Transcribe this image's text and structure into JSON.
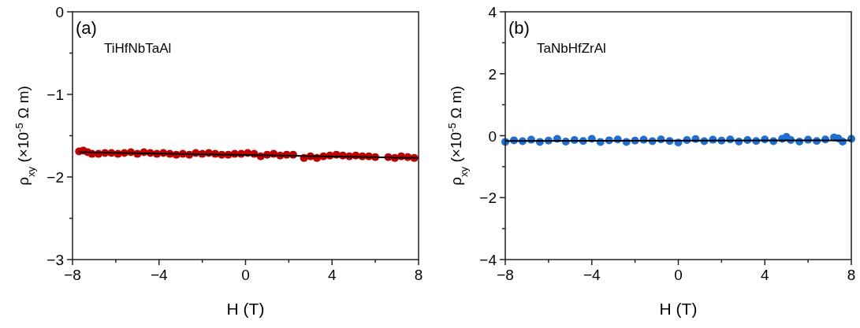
{
  "chart_data": [
    {
      "type": "scatter",
      "title": "(a)",
      "annotations": [
        "TiHfNbTaAl"
      ],
      "xlabel": "H (T)",
      "ylabel": "ρ$_{xy}$ (×10$^{-5}$ Ω m)",
      "xlim": [
        -8,
        8
      ],
      "xticks": [
        -8,
        {
          "value": -6,
          "label": null
        },
        -4,
        {
          "value": -2,
          "label": null
        },
        0,
        {
          "value": 2,
          "label": null
        },
        4,
        {
          "value": 6,
          "label": null
        },
        8
      ],
      "ylim": [
        -3,
        0
      ],
      "yticks": [
        -3,
        {
          "value": -2.5,
          "label": null
        },
        -2,
        {
          "value": -1.5,
          "label": null
        },
        -1,
        {
          "value": -0.5,
          "label": null
        },
        0
      ],
      "grid": false,
      "series": [
        {
          "marker": "circle",
          "color": "#c00000",
          "x": [
            -7.7,
            -7.5,
            -7.3,
            -7.1,
            -6.8,
            -6.5,
            -6.2,
            -5.9,
            -5.6,
            -5.3,
            -5.0,
            -4.7,
            -4.4,
            -4.1,
            -3.8,
            -3.5,
            -3.2,
            -2.9,
            -2.6,
            -2.3,
            -2.0,
            -1.7,
            -1.4,
            -1.1,
            -0.8,
            -0.5,
            -0.2,
            0.1,
            0.4,
            0.7,
            1.0,
            1.3,
            1.6,
            1.9,
            2.2,
            2.7,
            3.0,
            3.3,
            3.6,
            3.9,
            4.2,
            4.5,
            4.8,
            5.1,
            5.4,
            5.7,
            6.0,
            6.6,
            6.9,
            7.2,
            7.5,
            7.8
          ],
          "values": [
            -1.69,
            -1.68,
            -1.7,
            -1.72,
            -1.72,
            -1.71,
            -1.71,
            -1.72,
            -1.71,
            -1.7,
            -1.72,
            -1.7,
            -1.71,
            -1.72,
            -1.71,
            -1.72,
            -1.73,
            -1.72,
            -1.73,
            -1.71,
            -1.72,
            -1.71,
            -1.72,
            -1.73,
            -1.73,
            -1.72,
            -1.72,
            -1.71,
            -1.72,
            -1.75,
            -1.73,
            -1.72,
            -1.74,
            -1.73,
            -1.73,
            -1.77,
            -1.75,
            -1.77,
            -1.75,
            -1.74,
            -1.73,
            -1.74,
            -1.75,
            -1.74,
            -1.75,
            -1.75,
            -1.76,
            -1.76,
            -1.77,
            -1.75,
            -1.76,
            -1.77
          ]
        },
        {
          "type": "line",
          "color": "#000000",
          "x": [
            -7.7,
            8
          ],
          "values": [
            -1.7,
            -1.77
          ]
        }
      ]
    },
    {
      "type": "scatter",
      "title": "(b)",
      "annotations": [
        "TaNbHfZrAl"
      ],
      "xlabel": "H (T)",
      "ylabel": "ρ$_{xy}$ (×10$^{-5}$ Ω m)",
      "xlim": [
        -8,
        8
      ],
      "xticks": [
        -8,
        {
          "value": -6,
          "label": null
        },
        -4,
        {
          "value": -2,
          "label": null
        },
        0,
        {
          "value": 2,
          "label": null
        },
        4,
        {
          "value": 6,
          "label": null
        },
        8
      ],
      "ylim": [
        -4,
        4
      ],
      "yticks": [
        -4,
        {
          "value": -3,
          "label": null
        },
        -2,
        {
          "value": -1,
          "label": null
        },
        0,
        {
          "value": 1,
          "label": null
        },
        2,
        {
          "value": 3,
          "label": null
        },
        4
      ],
      "grid": false,
      "series": [
        {
          "marker": "circle",
          "color": "#1f6fd6",
          "x": [
            -8.0,
            -7.6,
            -7.2,
            -6.8,
            -6.4,
            -6.0,
            -5.6,
            -5.2,
            -4.8,
            -4.4,
            -4.0,
            -3.6,
            -3.2,
            -2.8,
            -2.4,
            -2.0,
            -1.6,
            -1.2,
            -0.8,
            -0.4,
            0.0,
            0.4,
            0.8,
            1.2,
            1.6,
            2.0,
            2.4,
            2.8,
            3.2,
            3.6,
            4.0,
            4.4,
            4.8,
            5.0,
            5.2,
            5.6,
            6.0,
            6.4,
            6.8,
            7.2,
            7.4,
            7.6,
            8.0
          ],
          "values": [
            -0.2,
            -0.15,
            -0.18,
            -0.13,
            -0.2,
            -0.16,
            -0.1,
            -0.19,
            -0.14,
            -0.17,
            -0.1,
            -0.2,
            -0.15,
            -0.12,
            -0.2,
            -0.16,
            -0.13,
            -0.18,
            -0.12,
            -0.17,
            -0.22,
            -0.14,
            -0.11,
            -0.18,
            -0.13,
            -0.16,
            -0.12,
            -0.19,
            -0.14,
            -0.17,
            -0.12,
            -0.18,
            -0.1,
            -0.04,
            -0.14,
            -0.19,
            -0.13,
            -0.17,
            -0.12,
            -0.06,
            -0.09,
            -0.19,
            -0.1
          ]
        },
        {
          "type": "line",
          "color": "#000000",
          "x": [
            -8,
            8
          ],
          "values": [
            -0.17,
            -0.15
          ]
        }
      ]
    }
  ]
}
